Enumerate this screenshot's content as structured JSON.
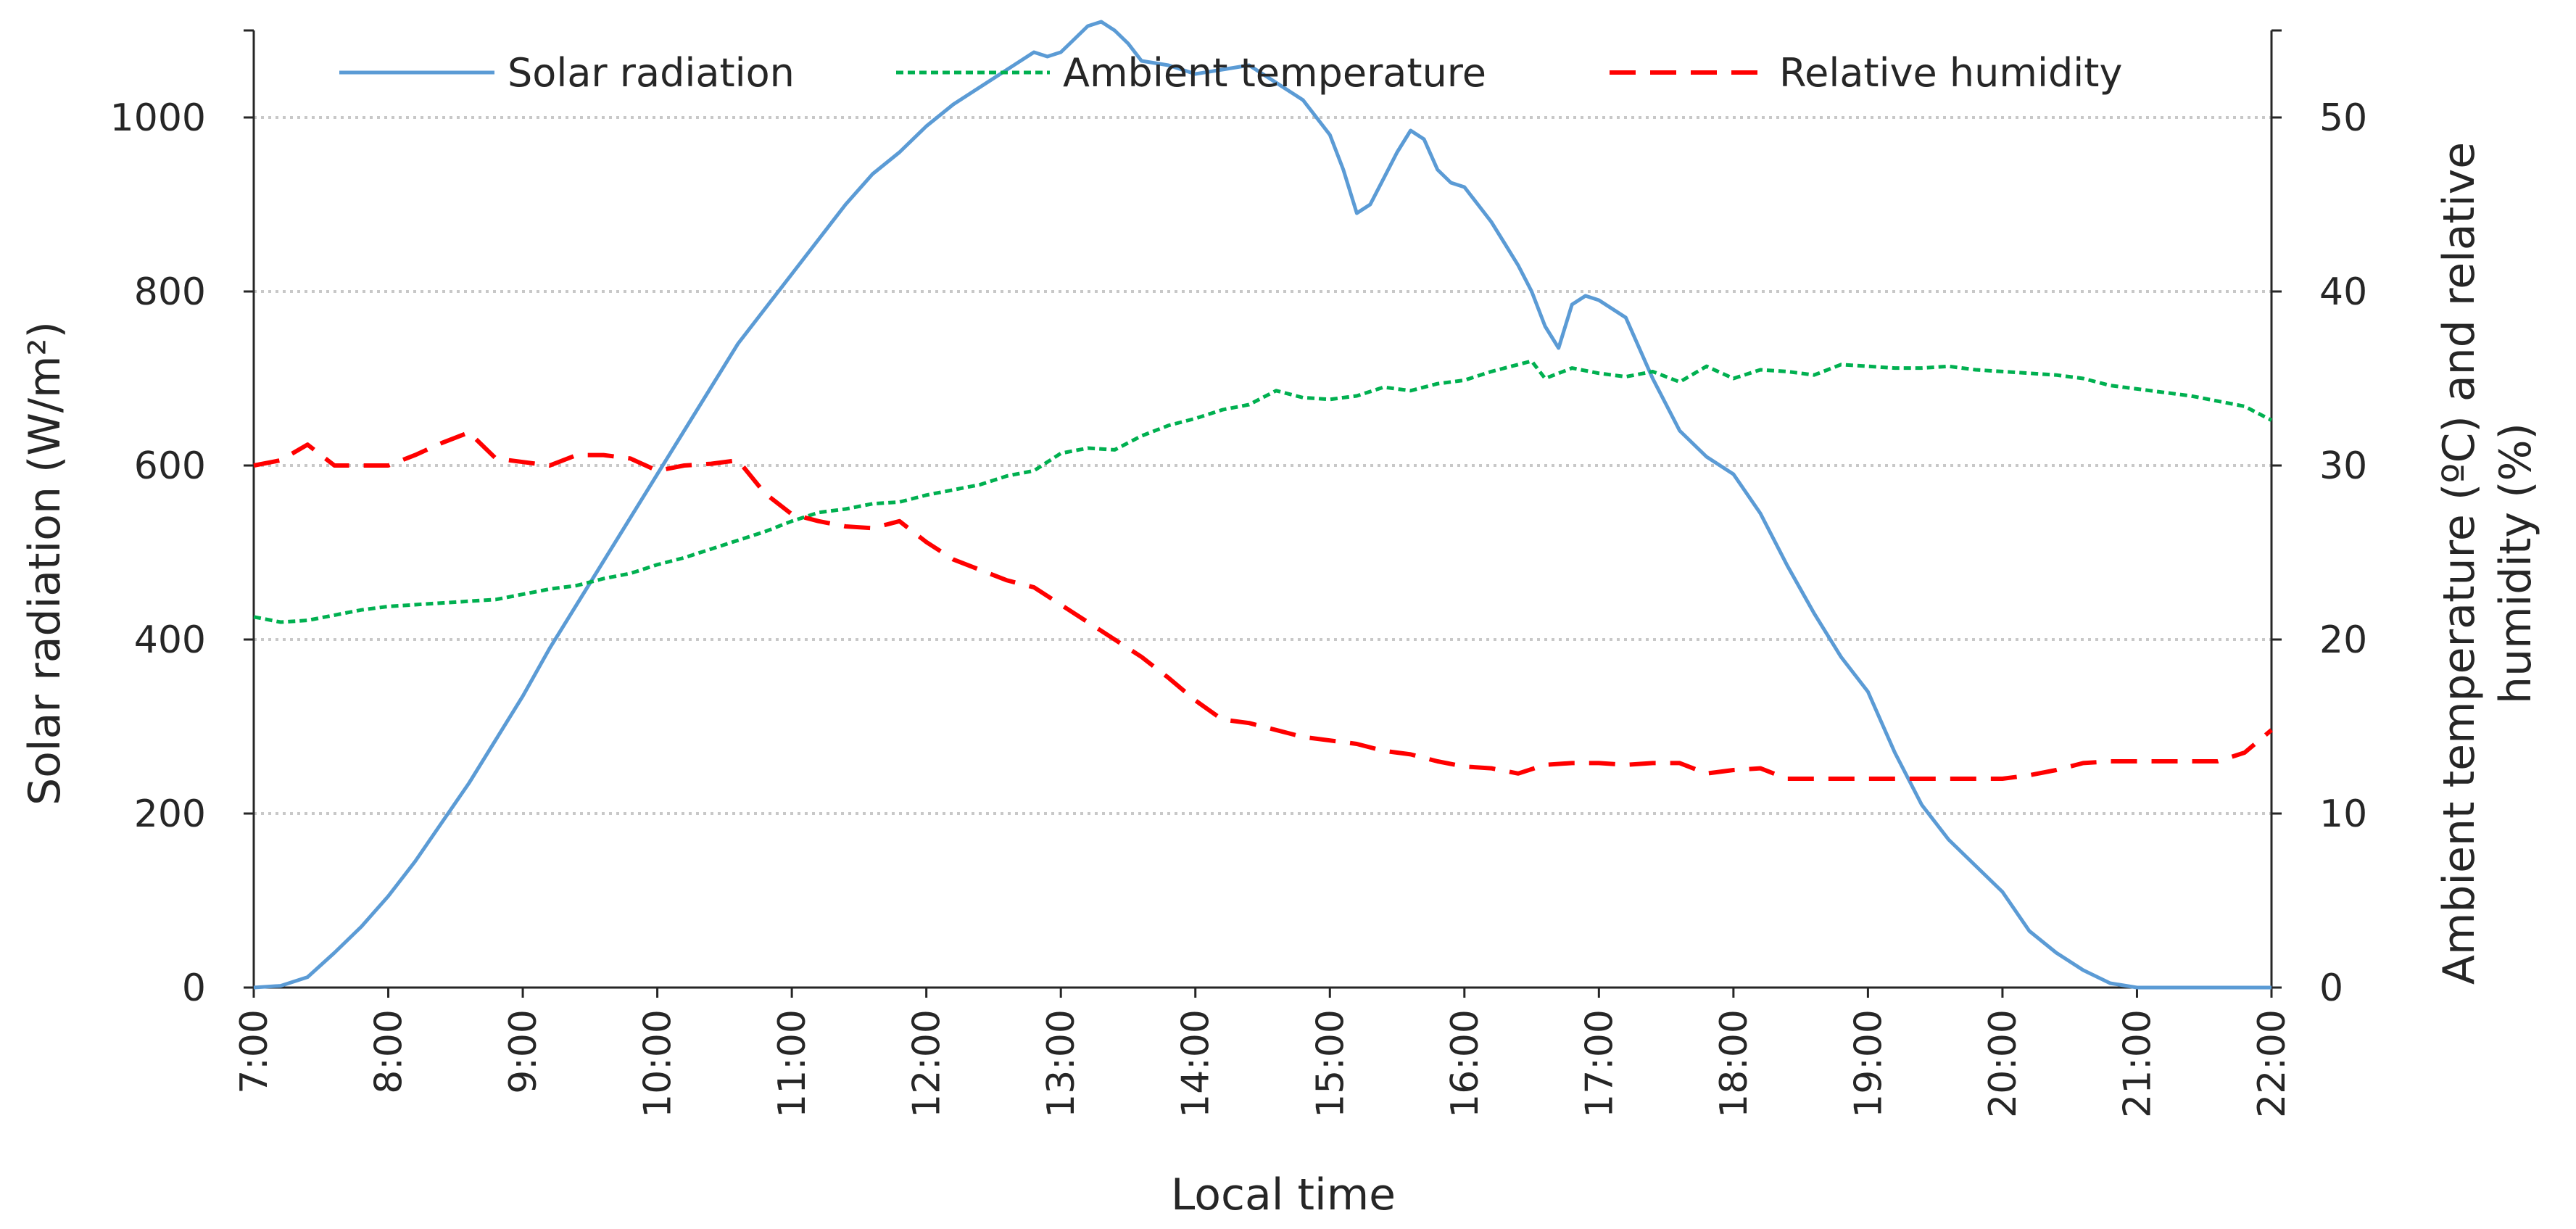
{
  "chart_data": {
    "type": "line",
    "xlabel": "Local time",
    "ylabel_left": "Solar radiation (W/m²)",
    "ylabel_right": [
      "Ambient temperature (ºC) and relative",
      "humidity (%)"
    ],
    "x_ticks": [
      "7:00",
      "8:00",
      "9:00",
      "10:00",
      "11:00",
      "12:00",
      "13:00",
      "14:00",
      "15:00",
      "16:00",
      "17:00",
      "18:00",
      "19:00",
      "20:00",
      "21:00",
      "22:00"
    ],
    "xlim": [
      7,
      22
    ],
    "ylim_left": [
      0,
      1100
    ],
    "ylim_right": [
      0,
      55
    ],
    "y_ticks_left": [
      "0",
      "200",
      "400",
      "600",
      "800",
      "1000"
    ],
    "y_ticks_right": [
      "0",
      "10",
      "20",
      "30",
      "40",
      "50"
    ],
    "grid": "horizontal dotted",
    "legend_position": "top",
    "series": [
      {
        "name": "Solar radiation",
        "axis": "left",
        "color": "#5b9bd5",
        "dash": "solid",
        "x": [
          7.0,
          7.2,
          7.4,
          7.6,
          7.8,
          8.0,
          8.2,
          8.4,
          8.6,
          8.8,
          9.0,
          9.2,
          9.4,
          9.6,
          9.8,
          10.0,
          10.2,
          10.4,
          10.6,
          10.8,
          11.0,
          11.2,
          11.4,
          11.6,
          11.8,
          12.0,
          12.2,
          12.4,
          12.6,
          12.8,
          12.9,
          13.0,
          13.1,
          13.2,
          13.3,
          13.4,
          13.5,
          13.6,
          13.8,
          14.0,
          14.2,
          14.4,
          14.5,
          14.6,
          14.8,
          15.0,
          15.1,
          15.2,
          15.3,
          15.4,
          15.5,
          15.6,
          15.7,
          15.8,
          15.9,
          16.0,
          16.1,
          16.2,
          16.3,
          16.4,
          16.5,
          16.6,
          16.7,
          16.8,
          16.9,
          17.0,
          17.2,
          17.4,
          17.6,
          17.8,
          18.0,
          18.2,
          18.4,
          18.6,
          18.8,
          19.0,
          19.2,
          19.4,
          19.6,
          19.8,
          20.0,
          20.2,
          20.4,
          20.6,
          20.8,
          21.0,
          21.2,
          21.4,
          21.6,
          21.8,
          22.0
        ],
        "values": [
          0,
          2,
          12,
          40,
          70,
          105,
          145,
          190,
          235,
          285,
          335,
          390,
          440,
          490,
          540,
          590,
          640,
          690,
          740,
          780,
          820,
          860,
          900,
          935,
          960,
          990,
          1015,
          1035,
          1055,
          1075,
          1070,
          1075,
          1090,
          1105,
          1110,
          1100,
          1085,
          1065,
          1060,
          1050,
          1055,
          1060,
          1050,
          1040,
          1020,
          980,
          940,
          890,
          900,
          930,
          960,
          985,
          975,
          940,
          925,
          920,
          900,
          880,
          855,
          830,
          800,
          760,
          735,
          785,
          795,
          790,
          770,
          700,
          640,
          610,
          590,
          545,
          485,
          430,
          380,
          340,
          270,
          210,
          170,
          140,
          110,
          65,
          40,
          20,
          5,
          0,
          0,
          0,
          0,
          0,
          0
        ]
      },
      {
        "name": "Ambient temperature",
        "axis": "right",
        "color": "#00b050",
        "dash": "short-dash",
        "x": [
          7.0,
          7.2,
          7.4,
          7.6,
          7.8,
          8.0,
          8.2,
          8.4,
          8.6,
          8.8,
          9.0,
          9.2,
          9.4,
          9.6,
          9.8,
          10.0,
          10.2,
          10.4,
          10.6,
          10.8,
          11.0,
          11.2,
          11.4,
          11.6,
          11.8,
          12.0,
          12.2,
          12.4,
          12.6,
          12.8,
          13.0,
          13.2,
          13.4,
          13.6,
          13.8,
          14.0,
          14.2,
          14.4,
          14.6,
          14.8,
          15.0,
          15.2,
          15.4,
          15.6,
          15.8,
          16.0,
          16.2,
          16.4,
          16.5,
          16.6,
          16.8,
          17.0,
          17.2,
          17.4,
          17.6,
          17.8,
          18.0,
          18.2,
          18.4,
          18.6,
          18.8,
          19.0,
          19.2,
          19.4,
          19.6,
          19.8,
          20.0,
          20.2,
          20.4,
          20.6,
          20.8,
          21.0,
          21.2,
          21.4,
          21.6,
          21.8,
          22.0
        ],
        "values": [
          21.3,
          21.0,
          21.1,
          21.4,
          21.7,
          21.9,
          22.0,
          22.1,
          22.2,
          22.3,
          22.6,
          22.9,
          23.1,
          23.5,
          23.8,
          24.3,
          24.7,
          25.2,
          25.7,
          26.2,
          26.8,
          27.3,
          27.5,
          27.8,
          27.9,
          28.3,
          28.6,
          28.9,
          29.4,
          29.7,
          30.7,
          31.0,
          30.9,
          31.7,
          32.3,
          32.7,
          33.2,
          33.5,
          34.3,
          33.9,
          33.8,
          34.0,
          34.5,
          34.3,
          34.7,
          34.9,
          35.4,
          35.8,
          36.0,
          35.0,
          35.6,
          35.3,
          35.1,
          35.4,
          34.8,
          35.7,
          35.0,
          35.5,
          35.4,
          35.2,
          35.8,
          35.7,
          35.6,
          35.6,
          35.7,
          35.5,
          35.4,
          35.3,
          35.2,
          35.0,
          34.6,
          34.4,
          34.2,
          34.0,
          33.7,
          33.4,
          32.6
        ]
      },
      {
        "name": "Relative humidity",
        "axis": "right",
        "color": "#ff0000",
        "dash": "long-dash",
        "x": [
          7.0,
          7.2,
          7.4,
          7.6,
          7.8,
          8.0,
          8.2,
          8.4,
          8.6,
          8.8,
          9.0,
          9.2,
          9.4,
          9.6,
          9.8,
          10.0,
          10.2,
          10.4,
          10.6,
          10.8,
          11.0,
          11.2,
          11.4,
          11.6,
          11.8,
          12.0,
          12.2,
          12.4,
          12.6,
          12.8,
          13.0,
          13.2,
          13.4,
          13.6,
          13.8,
          14.0,
          14.2,
          14.4,
          14.6,
          14.8,
          15.0,
          15.2,
          15.4,
          15.6,
          15.8,
          16.0,
          16.2,
          16.4,
          16.6,
          16.8,
          17.0,
          17.2,
          17.4,
          17.6,
          17.8,
          18.0,
          18.2,
          18.4,
          18.6,
          18.8,
          19.0,
          19.2,
          19.4,
          19.6,
          19.8,
          20.0,
          20.2,
          20.4,
          20.6,
          20.8,
          21.0,
          21.2,
          21.4,
          21.6,
          21.8,
          22.0
        ],
        "values": [
          30.0,
          30.3,
          31.2,
          30.0,
          30.0,
          30.0,
          30.6,
          31.3,
          31.9,
          30.4,
          30.2,
          30.0,
          30.6,
          30.6,
          30.4,
          29.7,
          30.0,
          30.1,
          30.3,
          28.4,
          27.2,
          26.8,
          26.5,
          26.4,
          26.8,
          25.6,
          24.6,
          24.0,
          23.4,
          23.0,
          22.0,
          21.0,
          20.0,
          19.0,
          17.8,
          16.5,
          15.4,
          15.2,
          14.8,
          14.4,
          14.2,
          14.0,
          13.6,
          13.4,
          13.0,
          12.7,
          12.6,
          12.3,
          12.8,
          12.9,
          12.9,
          12.8,
          12.9,
          12.9,
          12.3,
          12.5,
          12.6,
          12.0,
          12.0,
          12.0,
          12.0,
          12.0,
          12.0,
          12.0,
          12.0,
          12.0,
          12.2,
          12.5,
          12.9,
          13.0,
          13.0,
          13.0,
          13.0,
          13.0,
          13.5,
          14.8
        ]
      }
    ]
  }
}
